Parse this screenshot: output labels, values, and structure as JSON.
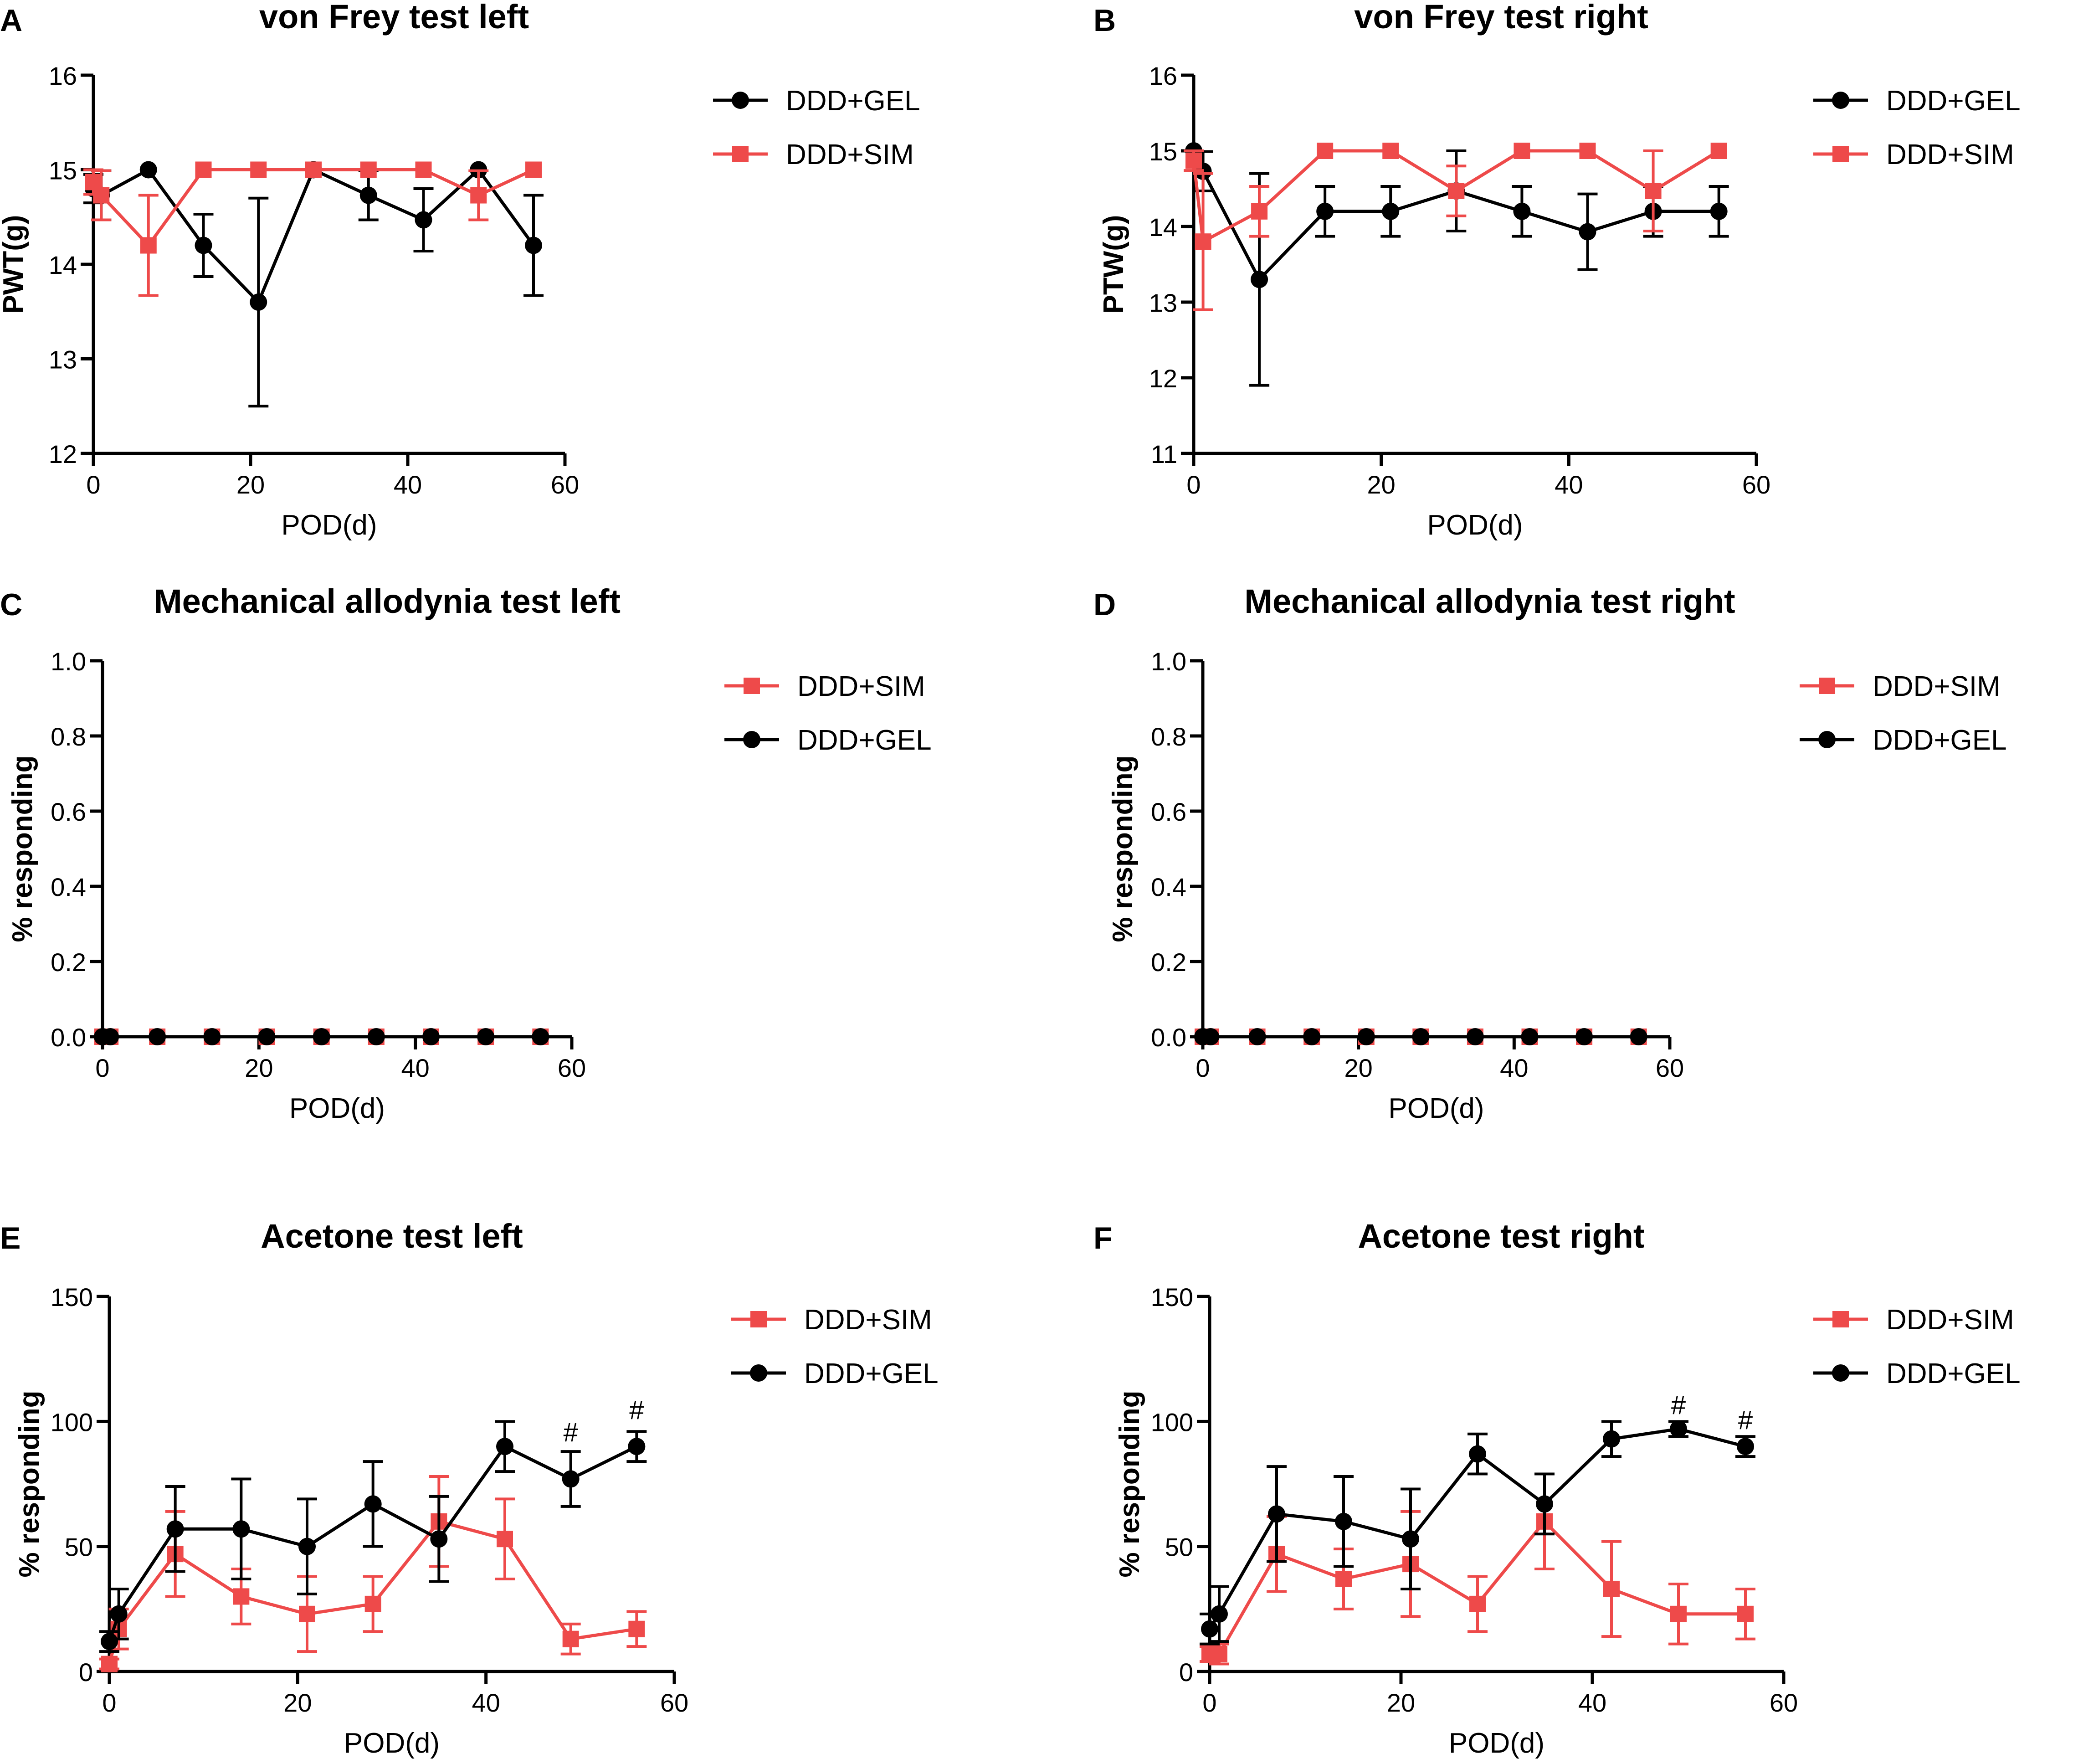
{
  "figure": {
    "background": "#ffffff"
  },
  "colors": {
    "gel": "#000000",
    "sim": "#ee4a4a"
  },
  "chart_data": [
    {
      "panel_letter": "A",
      "type": "line",
      "title": "von Frey test left",
      "xlabel": "POD(d)",
      "ylabel": "PWT(g)",
      "xlim": [
        0,
        60
      ],
      "ylim": [
        12,
        16
      ],
      "xticks": [
        0,
        20,
        40,
        60
      ],
      "yticks": [
        12,
        13,
        14,
        15,
        16
      ],
      "ytick_decimals": 0,
      "legend_position": "right",
      "legend": [
        "DDD+GEL",
        "DDD+SIM"
      ],
      "x": [
        0,
        1,
        7,
        14,
        21,
        28,
        35,
        42,
        49,
        56
      ],
      "series": [
        {
          "name": "DDD+GEL",
          "marker": "circle",
          "values": [
            14.8,
            14.73,
            15.0,
            14.2,
            13.6,
            15.0,
            14.73,
            14.47,
            15.0,
            14.2
          ],
          "errors": [
            0.15,
            0.26,
            0.0,
            0.33,
            1.1,
            0.0,
            0.26,
            0.33,
            0.0,
            0.53
          ]
        },
        {
          "name": "DDD+SIM",
          "marker": "square",
          "values": [
            14.87,
            14.73,
            14.2,
            15.0,
            15.0,
            15.0,
            15.0,
            15.0,
            14.73,
            15.0
          ],
          "errors": [
            0.13,
            0.26,
            0.53,
            0.0,
            0.0,
            0.0,
            0.0,
            0.0,
            0.26,
            0.0
          ]
        }
      ],
      "annotations": []
    },
    {
      "panel_letter": "B",
      "type": "line",
      "title": "von Frey test right",
      "xlabel": "POD(d)",
      "ylabel": "PTW(g)",
      "xlim": [
        0,
        60
      ],
      "ylim": [
        11,
        16
      ],
      "xticks": [
        0,
        20,
        40,
        60
      ],
      "yticks": [
        11,
        12,
        13,
        14,
        15,
        16
      ],
      "ytick_decimals": 0,
      "legend_position": "right",
      "legend": [
        "DDD+GEL",
        "DDD+SIM"
      ],
      "x": [
        0,
        1,
        7,
        14,
        21,
        28,
        35,
        42,
        49,
        56
      ],
      "series": [
        {
          "name": "DDD+GEL",
          "marker": "circle",
          "values": [
            15.0,
            14.73,
            13.3,
            14.2,
            14.2,
            14.47,
            14.2,
            13.93,
            14.2,
            14.2
          ],
          "errors": [
            0.0,
            0.26,
            1.4,
            0.33,
            0.33,
            0.53,
            0.33,
            0.5,
            0.33,
            0.33
          ]
        },
        {
          "name": "DDD+SIM",
          "marker": "square",
          "values": [
            14.87,
            13.8,
            14.2,
            15.0,
            15.0,
            14.47,
            15.0,
            15.0,
            14.47,
            15.0
          ],
          "errors": [
            0.13,
            0.9,
            0.33,
            0.0,
            0.0,
            0.33,
            0.0,
            0.0,
            0.53,
            0.0
          ]
        }
      ],
      "annotations": []
    },
    {
      "panel_letter": "C",
      "type": "line",
      "title": "Mechanical allodynia test left",
      "xlabel": "POD(d)",
      "ylabel": "% responding",
      "xlim": [
        0,
        60
      ],
      "ylim": [
        0,
        1.0
      ],
      "xticks": [
        0,
        20,
        40,
        60
      ],
      "yticks": [
        0.0,
        0.2,
        0.4,
        0.6,
        0.8,
        1.0
      ],
      "ytick_decimals": 1,
      "legend_position": "right",
      "legend": [
        "DDD+SIM",
        "DDD+GEL"
      ],
      "x": [
        0,
        1,
        7,
        14,
        21,
        28,
        35,
        42,
        49,
        56
      ],
      "series": [
        {
          "name": "DDD+SIM",
          "marker": "square",
          "values": [
            0,
            0,
            0,
            0,
            0,
            0,
            0,
            0,
            0,
            0
          ],
          "errors": [
            0,
            0,
            0,
            0,
            0,
            0,
            0,
            0,
            0,
            0
          ]
        },
        {
          "name": "DDD+GEL",
          "marker": "circle",
          "values": [
            0,
            0,
            0,
            0,
            0,
            0,
            0,
            0,
            0,
            0
          ],
          "errors": [
            0,
            0,
            0,
            0,
            0,
            0,
            0,
            0,
            0,
            0
          ]
        }
      ],
      "annotations": []
    },
    {
      "panel_letter": "D",
      "type": "line",
      "title": "Mechanical allodynia test right",
      "xlabel": "POD(d)",
      "ylabel": "% responding",
      "xlim": [
        0,
        60
      ],
      "ylim": [
        0,
        1.0
      ],
      "xticks": [
        0,
        20,
        40,
        60
      ],
      "yticks": [
        0.0,
        0.2,
        0.4,
        0.6,
        0.8,
        1.0
      ],
      "ytick_decimals": 1,
      "legend_position": "right",
      "legend": [
        "DDD+SIM",
        "DDD+GEL"
      ],
      "x": [
        0,
        1,
        7,
        14,
        21,
        28,
        35,
        42,
        49,
        56
      ],
      "series": [
        {
          "name": "DDD+SIM",
          "marker": "square",
          "values": [
            0,
            0,
            0,
            0,
            0,
            0,
            0,
            0,
            0,
            0
          ],
          "errors": [
            0,
            0,
            0,
            0,
            0,
            0,
            0,
            0,
            0,
            0
          ]
        },
        {
          "name": "DDD+GEL",
          "marker": "circle",
          "values": [
            0,
            0,
            0,
            0,
            0,
            0,
            0,
            0,
            0,
            0
          ],
          "errors": [
            0,
            0,
            0,
            0,
            0,
            0,
            0,
            0,
            0,
            0
          ]
        }
      ],
      "annotations": []
    },
    {
      "panel_letter": "E",
      "type": "line",
      "title": "Acetone test  left",
      "xlabel": "POD(d)",
      "ylabel": "% responding",
      "xlim": [
        0,
        60
      ],
      "ylim": [
        0,
        150
      ],
      "xticks": [
        0,
        20,
        40,
        60
      ],
      "yticks": [
        0,
        50,
        100,
        150
      ],
      "ytick_decimals": 0,
      "legend_position": "right",
      "legend": [
        "DDD+SIM",
        "DDD+GEL"
      ],
      "x": [
        0,
        1,
        7,
        14,
        21,
        28,
        35,
        42,
        49,
        56
      ],
      "series": [
        {
          "name": "DDD+SIM",
          "marker": "square",
          "values": [
            3,
            17,
            47,
            30,
            23,
            27,
            60,
            53,
            13,
            17
          ],
          "errors": [
            2,
            8,
            17,
            11,
            15,
            11,
            18,
            16,
            6,
            7
          ]
        },
        {
          "name": "DDD+GEL",
          "marker": "circle",
          "values": [
            12,
            23,
            57,
            57,
            50,
            67,
            53,
            90,
            77,
            90
          ],
          "errors": [
            4,
            10,
            17,
            20,
            19,
            17,
            17,
            10,
            11,
            6
          ]
        }
      ],
      "annotations": [
        {
          "text": "#",
          "x": 49,
          "y": 92
        },
        {
          "text": "#",
          "x": 56,
          "y": 101
        }
      ]
    },
    {
      "panel_letter": "F",
      "type": "line",
      "title": "Acetone test right",
      "xlabel": "POD(d)",
      "ylabel": "% responding",
      "xlim": [
        0,
        60
      ],
      "ylim": [
        0,
        150
      ],
      "xticks": [
        0,
        20,
        40,
        60
      ],
      "yticks": [
        0,
        50,
        100,
        150
      ],
      "ytick_decimals": 0,
      "legend_position": "right",
      "legend": [
        "DDD+SIM",
        "DDD+GEL"
      ],
      "x": [
        0,
        1,
        7,
        14,
        21,
        28,
        35,
        42,
        49,
        56
      ],
      "series": [
        {
          "name": "DDD+SIM",
          "marker": "square",
          "values": [
            7,
            7,
            47,
            37,
            43,
            27,
            60,
            33,
            23,
            23
          ],
          "errors": [
            3,
            4,
            15,
            12,
            21,
            11,
            19,
            19,
            12,
            10
          ]
        },
        {
          "name": "DDD+GEL",
          "marker": "circle",
          "values": [
            17,
            23,
            63,
            60,
            53,
            87,
            67,
            93,
            97,
            90
          ],
          "errors": [
            6,
            11,
            19,
            18,
            20,
            8,
            12,
            7,
            3,
            4
          ]
        }
      ],
      "annotations": [
        {
          "text": "#",
          "x": 49,
          "y": 103
        },
        {
          "text": "#",
          "x": 56,
          "y": 97
        }
      ]
    }
  ]
}
